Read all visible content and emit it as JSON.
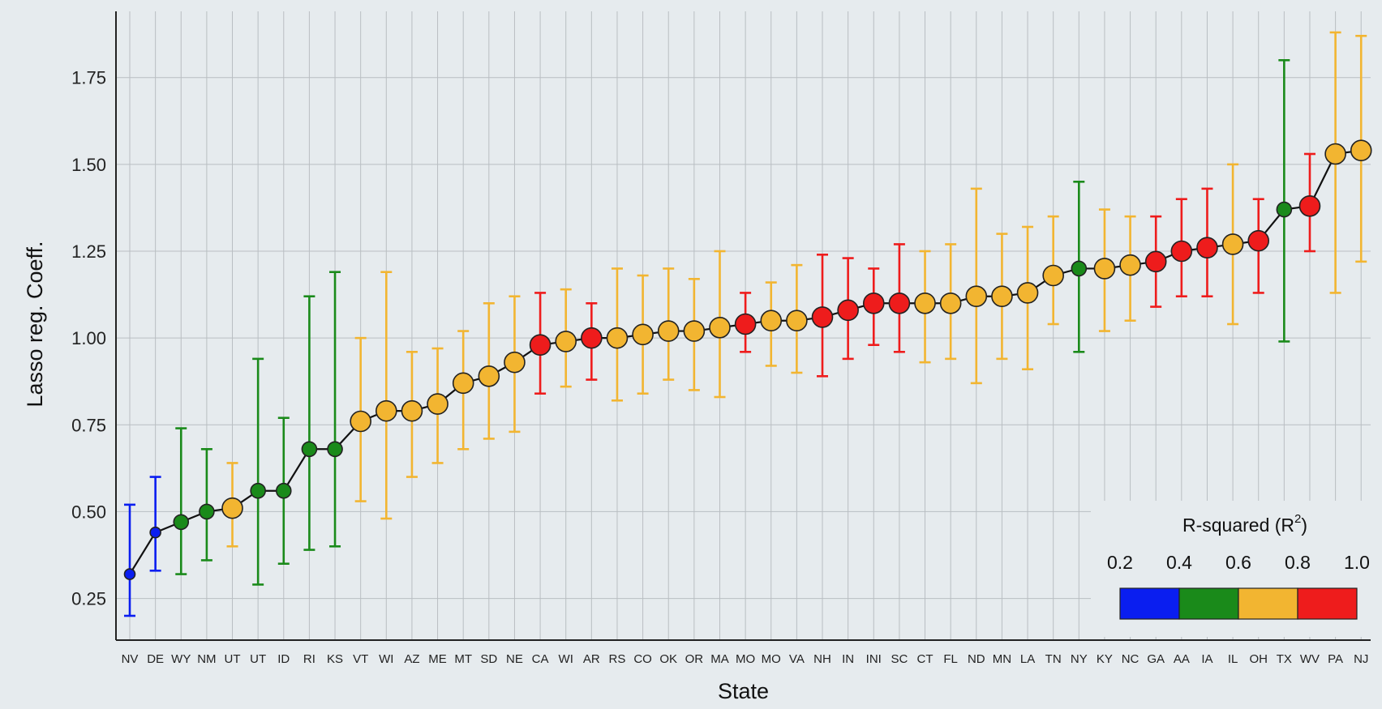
{
  "chart_data": {
    "type": "scatter",
    "xlabel": "State",
    "ylabel": "Lasso reg. Coeff.",
    "ylim": [
      0.13,
      1.95
    ],
    "yticks": [
      "0.25",
      "0.50",
      "0.75",
      "1.00",
      "1.25",
      "1.50",
      "1.75"
    ],
    "ytick_values": [
      0.25,
      0.5,
      0.75,
      1.0,
      1.25,
      1.5,
      1.75
    ],
    "grid": true,
    "points_connected": true,
    "legend": {
      "title": "R-squared (R",
      "title_sup": "2",
      "title_end": ")",
      "placement": "bottom-right",
      "ticks": [
        "0.2",
        "0.4",
        "0.6",
        "0.8",
        "1.0"
      ],
      "bins": [
        {
          "range": [
            0.2,
            0.4
          ],
          "color": "#0a1ef0"
        },
        {
          "range": [
            0.4,
            0.6
          ],
          "color": "#1a8a1a"
        },
        {
          "range": [
            0.6,
            0.8
          ],
          "color": "#f2b531"
        },
        {
          "range": [
            0.8,
            1.0
          ],
          "color": "#ee1c1c"
        }
      ]
    },
    "states": [
      {
        "label": "NV",
        "value": 0.32,
        "lower": 0.2,
        "upper": 0.52,
        "r2": 0.3
      },
      {
        "label": "DE",
        "value": 0.44,
        "lower": 0.33,
        "upper": 0.6,
        "r2": 0.3
      },
      {
        "label": "WY",
        "value": 0.47,
        "lower": 0.32,
        "upper": 0.74,
        "r2": 0.5
      },
      {
        "label": "NM",
        "value": 0.5,
        "lower": 0.36,
        "upper": 0.68,
        "r2": 0.5
      },
      {
        "label": "UT",
        "value": 0.51,
        "lower": 0.4,
        "upper": 0.64,
        "r2": 0.7
      },
      {
        "label": "UT",
        "value": 0.56,
        "lower": 0.29,
        "upper": 0.94,
        "r2": 0.5
      },
      {
        "label": "ID",
        "value": 0.56,
        "lower": 0.35,
        "upper": 0.77,
        "r2": 0.5
      },
      {
        "label": "RI",
        "value": 0.68,
        "lower": 0.39,
        "upper": 1.12,
        "r2": 0.5
      },
      {
        "label": "KS",
        "value": 0.68,
        "lower": 0.4,
        "upper": 1.19,
        "r2": 0.5
      },
      {
        "label": "VT",
        "value": 0.76,
        "lower": 0.53,
        "upper": 1.0,
        "r2": 0.7
      },
      {
        "label": "WI",
        "value": 0.79,
        "lower": 0.48,
        "upper": 1.19,
        "r2": 0.7
      },
      {
        "label": "AZ",
        "value": 0.79,
        "lower": 0.6,
        "upper": 0.96,
        "r2": 0.7
      },
      {
        "label": "ME",
        "value": 0.81,
        "lower": 0.64,
        "upper": 0.97,
        "r2": 0.7
      },
      {
        "label": "MT",
        "value": 0.87,
        "lower": 0.68,
        "upper": 1.02,
        "r2": 0.7
      },
      {
        "label": "SD",
        "value": 0.89,
        "lower": 0.71,
        "upper": 1.1,
        "r2": 0.7
      },
      {
        "label": "NE",
        "value": 0.93,
        "lower": 0.73,
        "upper": 1.12,
        "r2": 0.7
      },
      {
        "label": "CA",
        "value": 0.98,
        "lower": 0.84,
        "upper": 1.13,
        "r2": 0.9
      },
      {
        "label": "WI",
        "value": 0.99,
        "lower": 0.86,
        "upper": 1.14,
        "r2": 0.7
      },
      {
        "label": "AR",
        "value": 1.0,
        "lower": 0.88,
        "upper": 1.1,
        "r2": 0.9
      },
      {
        "label": "RS",
        "value": 1.0,
        "lower": 0.82,
        "upper": 1.2,
        "r2": 0.7
      },
      {
        "label": "CO",
        "value": 1.01,
        "lower": 0.84,
        "upper": 1.18,
        "r2": 0.7
      },
      {
        "label": "OK",
        "value": 1.02,
        "lower": 0.88,
        "upper": 1.2,
        "r2": 0.7
      },
      {
        "label": "OR",
        "value": 1.02,
        "lower": 0.85,
        "upper": 1.17,
        "r2": 0.7
      },
      {
        "label": "MA",
        "value": 1.03,
        "lower": 0.83,
        "upper": 1.25,
        "r2": 0.7
      },
      {
        "label": "MO",
        "value": 1.04,
        "lower": 0.96,
        "upper": 1.13,
        "r2": 0.9
      },
      {
        "label": "MO",
        "value": 1.05,
        "lower": 0.92,
        "upper": 1.16,
        "r2": 0.7
      },
      {
        "label": "VA",
        "value": 1.05,
        "lower": 0.9,
        "upper": 1.21,
        "r2": 0.7
      },
      {
        "label": "NH",
        "value": 1.06,
        "lower": 0.89,
        "upper": 1.24,
        "r2": 0.9
      },
      {
        "label": "IN",
        "value": 1.08,
        "lower": 0.94,
        "upper": 1.23,
        "r2": 0.9
      },
      {
        "label": "INI",
        "value": 1.1,
        "lower": 0.98,
        "upper": 1.2,
        "r2": 0.9
      },
      {
        "label": "SC",
        "value": 1.1,
        "lower": 0.96,
        "upper": 1.27,
        "r2": 0.9
      },
      {
        "label": "CT",
        "value": 1.1,
        "lower": 0.93,
        "upper": 1.25,
        "r2": 0.7
      },
      {
        "label": "FL",
        "value": 1.1,
        "lower": 0.94,
        "upper": 1.27,
        "r2": 0.7
      },
      {
        "label": "ND",
        "value": 1.12,
        "lower": 0.87,
        "upper": 1.43,
        "r2": 0.7
      },
      {
        "label": "MN",
        "value": 1.12,
        "lower": 0.94,
        "upper": 1.3,
        "r2": 0.7
      },
      {
        "label": "LA",
        "value": 1.13,
        "lower": 0.91,
        "upper": 1.32,
        "r2": 0.7
      },
      {
        "label": "TN",
        "value": 1.18,
        "lower": 1.04,
        "upper": 1.35,
        "r2": 0.7
      },
      {
        "label": "NY",
        "value": 1.2,
        "lower": 0.96,
        "upper": 1.45,
        "r2": 0.5
      },
      {
        "label": "KY",
        "value": 1.2,
        "lower": 1.02,
        "upper": 1.37,
        "r2": 0.7
      },
      {
        "label": "NC",
        "value": 1.21,
        "lower": 1.05,
        "upper": 1.35,
        "r2": 0.7
      },
      {
        "label": "GA",
        "value": 1.22,
        "lower": 1.09,
        "upper": 1.35,
        "r2": 0.9
      },
      {
        "label": "AA",
        "value": 1.25,
        "lower": 1.12,
        "upper": 1.4,
        "r2": 0.9
      },
      {
        "label": "IA",
        "value": 1.26,
        "lower": 1.12,
        "upper": 1.43,
        "r2": 0.9
      },
      {
        "label": "IL",
        "value": 1.27,
        "lower": 1.04,
        "upper": 1.5,
        "r2": 0.7
      },
      {
        "label": "OH",
        "value": 1.28,
        "lower": 1.13,
        "upper": 1.4,
        "r2": 0.9
      },
      {
        "label": "TX",
        "value": 1.37,
        "lower": 0.99,
        "upper": 1.8,
        "r2": 0.5
      },
      {
        "label": "WV",
        "value": 1.38,
        "lower": 1.25,
        "upper": 1.53,
        "r2": 0.9
      },
      {
        "label": "PA",
        "value": 1.53,
        "lower": 1.13,
        "upper": 1.88,
        "r2": 0.7
      },
      {
        "label": "NJ",
        "value": 1.54,
        "lower": 1.22,
        "upper": 1.87,
        "r2": 0.7
      }
    ]
  }
}
